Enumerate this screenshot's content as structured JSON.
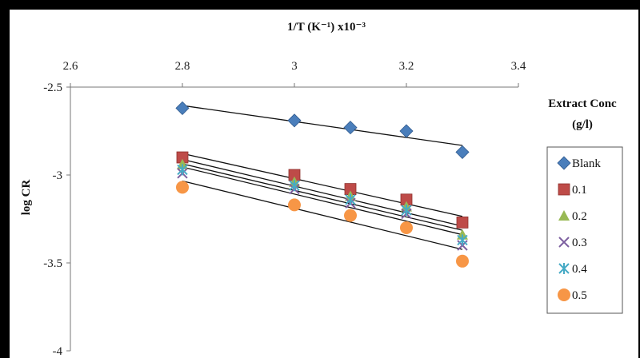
{
  "chart_data": {
    "type": "scatter",
    "title": "",
    "xlabel": "1/T (K⁻¹) x10⁻³",
    "ylabel": "log CR",
    "xlim": [
      2.6,
      3.4
    ],
    "ylim": [
      -4,
      -2.5
    ],
    "x_ticks": [
      "2.6",
      "2.8",
      "3",
      "3.2",
      "3.4"
    ],
    "y_ticks": [
      "-2.5",
      "-3",
      "-3.5",
      "-4"
    ],
    "x_axis_position": "top",
    "grid": false,
    "legend_title": "Extract Conc (g/l)",
    "legend_title_lines": [
      "Extract Conc",
      "(g/l)"
    ],
    "legend_position": "right",
    "trendlines": true,
    "x": [
      2.8,
      3.0,
      3.1,
      3.2,
      3.3
    ],
    "series": [
      {
        "name": "Blank",
        "marker": "diamond",
        "color": "#4a7ebb",
        "y": [
          -2.62,
          -2.69,
          -2.73,
          -2.75,
          -2.87
        ]
      },
      {
        "name": "0.1",
        "marker": "square",
        "color": "#be4b48",
        "y": [
          -2.9,
          -3.0,
          -3.08,
          -3.14,
          -3.27
        ]
      },
      {
        "name": "0.2",
        "marker": "triangle",
        "color": "#98b954",
        "y": [
          -2.94,
          -3.04,
          -3.12,
          -3.18,
          -3.34
        ]
      },
      {
        "name": "0.3",
        "marker": "x",
        "color": "#7d60a0",
        "y": [
          -2.99,
          -3.08,
          -3.16,
          -3.22,
          -3.4
        ]
      },
      {
        "name": "0.4",
        "marker": "star",
        "color": "#46aac5",
        "y": [
          -2.97,
          -3.06,
          -3.14,
          -3.2,
          -3.37
        ]
      },
      {
        "name": "0.5",
        "marker": "circle",
        "color": "#f79646",
        "y": [
          -3.07,
          -3.17,
          -3.23,
          -3.3,
          -3.49
        ]
      }
    ]
  }
}
